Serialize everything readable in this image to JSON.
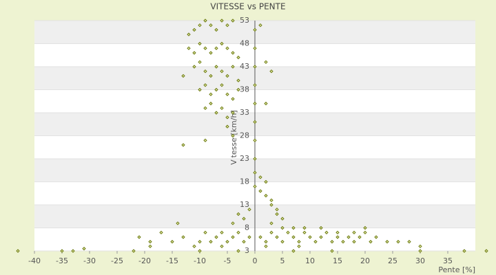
{
  "chart_data": {
    "type": "scatter",
    "title": "VITESSE vs PENTE",
    "x_label": "Pente [%]",
    "y_label": "Vitesse [km/h]",
    "color": "#6b7a10",
    "x": [
      -12,
      -11,
      -10,
      -9,
      -8,
      -7,
      -6,
      -5,
      -4,
      -12,
      -11,
      -10,
      -9,
      -8,
      -7,
      -6,
      -5,
      -4,
      -3,
      -13,
      -11,
      -10,
      -9,
      -8,
      -7,
      -6,
      -5,
      -4,
      -3,
      -10,
      -9,
      -8,
      -7,
      -6,
      -5,
      -4,
      -3,
      -9,
      -8,
      -7,
      -6,
      -5,
      -4,
      -9,
      -13,
      -5,
      -4,
      0,
      0,
      0,
      0,
      0,
      0,
      0,
      0,
      0,
      0,
      1,
      2,
      3,
      2,
      1,
      2,
      1,
      2,
      3,
      3,
      4,
      4,
      5,
      -1,
      -2,
      -4,
      -3,
      1,
      2,
      3,
      4,
      5,
      6,
      7,
      8,
      9,
      10,
      11,
      12,
      13,
      14,
      15,
      16,
      17,
      18,
      19,
      20,
      21,
      22,
      24,
      26,
      28,
      30,
      3,
      5,
      7,
      9,
      12,
      15,
      18,
      20,
      -1,
      -2,
      -3,
      -4,
      -5,
      -6,
      -7,
      -8,
      -9,
      -10,
      -11,
      -13,
      -14,
      -15,
      -17,
      -19,
      -21,
      -10,
      -6,
      -3,
      2,
      8,
      14,
      7,
      -43,
      -35,
      -33,
      -31,
      -22,
      -19,
      30,
      38,
      42
    ],
    "values": [
      50,
      51,
      52,
      53,
      52,
      51,
      53,
      52,
      53,
      47,
      46,
      48,
      47,
      46,
      47,
      48,
      47,
      46,
      45,
      41,
      43,
      44,
      42,
      41,
      43,
      42,
      41,
      43,
      40,
      38,
      39,
      37,
      38,
      39,
      37,
      36,
      38,
      34,
      35,
      33,
      34,
      32,
      33,
      27,
      26,
      30,
      28,
      51,
      47,
      43,
      39,
      35,
      31,
      27,
      23,
      20,
      17,
      52,
      44,
      42,
      35,
      19,
      18,
      16,
      15,
      13,
      14,
      12,
      11,
      10,
      12,
      10,
      9,
      11,
      6,
      5,
      7,
      6,
      5,
      7,
      6,
      5,
      7,
      6,
      5,
      6,
      7,
      5,
      6,
      5,
      6,
      5,
      6,
      7,
      5,
      6,
      5,
      5,
      5,
      4,
      9,
      8,
      8,
      8,
      8,
      7,
      7,
      8,
      6,
      5,
      7,
      6,
      5,
      7,
      6,
      5,
      7,
      5,
      4,
      6,
      9,
      5,
      7,
      5,
      6,
      3,
      4,
      3,
      4,
      4,
      3,
      3,
      3,
      3,
      3,
      3.5,
      3,
      4,
      3,
      3,
      3
    ],
    "xlim": [
      -40,
      40
    ],
    "xticks": [
      -40,
      -35,
      -30,
      -25,
      -20,
      -15,
      -10,
      -5,
      0,
      5,
      10,
      15,
      20,
      25,
      30,
      35
    ],
    "ylim": [
      3,
      53
    ],
    "yticks": [
      3,
      8,
      13,
      18,
      23,
      28,
      33,
      38,
      43,
      48,
      53
    ],
    "grid": true
  }
}
